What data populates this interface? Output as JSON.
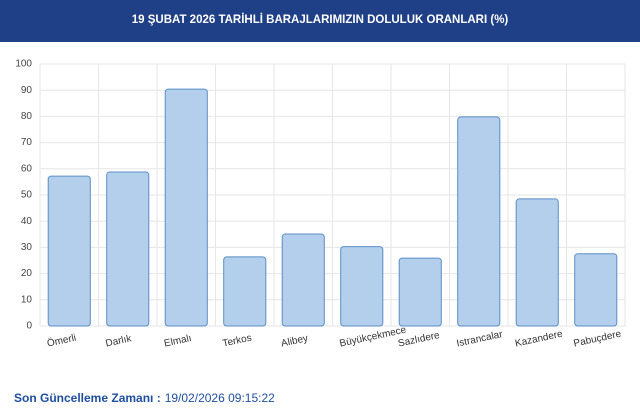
{
  "chart_data": {
    "type": "bar",
    "title": "19 ŞUBAT 2026 TARİHLİ BARAJLARIMIZIN DOLULUK ORANLARI (%)",
    "categories": [
      "Ömerli",
      "Darlık",
      "Elmalı",
      "Terkos",
      "Alibey",
      "Büyükçekmece",
      "Sazlıdere",
      "Istrancalar",
      "Kazandere",
      "Pabuçdere"
    ],
    "values": [
      57.2,
      58.8,
      90.4,
      26.4,
      35.1,
      30.3,
      25.9,
      79.8,
      48.5,
      27.6
    ],
    "color": "#b3cfec",
    "border_color": "#5b8fc7",
    "ylim": [
      0,
      100
    ],
    "yticks": [
      0,
      10,
      20,
      30,
      40,
      50,
      60,
      70,
      80,
      90,
      100
    ],
    "grid": true
  },
  "footer": {
    "label": "Son Güncelleme Zamanı :",
    "value": "19/02/2026 09:15:22"
  }
}
